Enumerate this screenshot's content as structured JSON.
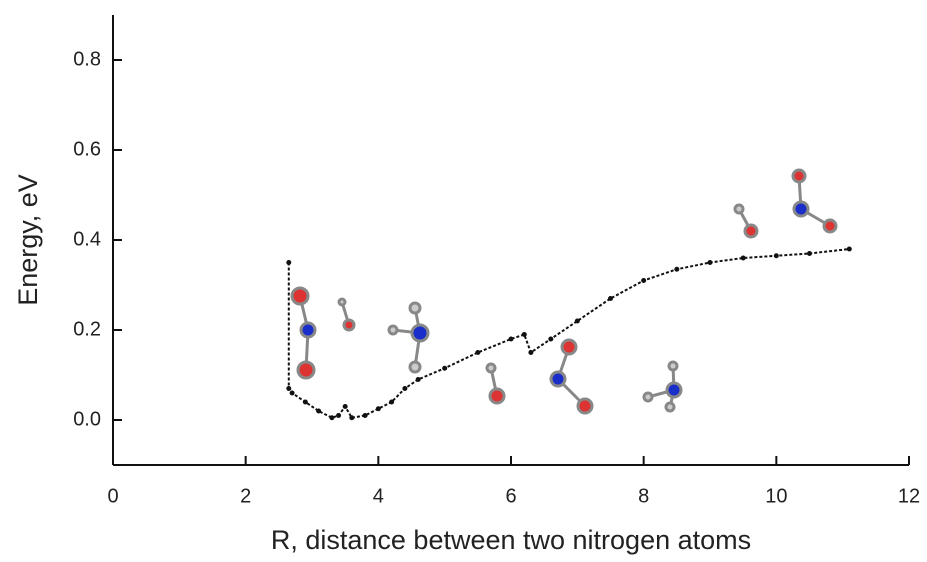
{
  "chart_data": {
    "type": "line",
    "x_label": "R, distance between two nitrogen atoms",
    "y_label": "Energy, eV",
    "x": [
      2.65,
      2.65,
      2.7,
      2.9,
      3.1,
      3.3,
      3.4,
      3.5,
      3.6,
      3.8,
      4.0,
      4.2,
      4.4,
      4.6,
      5.0,
      5.5,
      6.0,
      6.2,
      6.3,
      6.6,
      7.0,
      7.5,
      8.0,
      8.5,
      9.0,
      9.5,
      10.0,
      10.5,
      11.1
    ],
    "values": [
      0.35,
      0.07,
      0.06,
      0.04,
      0.02,
      0.005,
      0.01,
      0.03,
      0.005,
      0.01,
      0.025,
      0.04,
      0.07,
      0.09,
      0.115,
      0.15,
      0.18,
      0.19,
      0.15,
      0.18,
      0.22,
      0.27,
      0.31,
      0.335,
      0.35,
      0.36,
      0.365,
      0.37,
      0.38
    ],
    "color": "#111111",
    "xlim": [
      0,
      12
    ],
    "xticks": [
      0,
      2,
      4,
      6,
      8,
      10,
      12
    ],
    "ylim": [
      -0.1,
      0.9
    ],
    "yticks": [
      {
        "value": 0,
        "label": "0.0"
      },
      0.2,
      0.4,
      0.6,
      0.8
    ]
  }
}
